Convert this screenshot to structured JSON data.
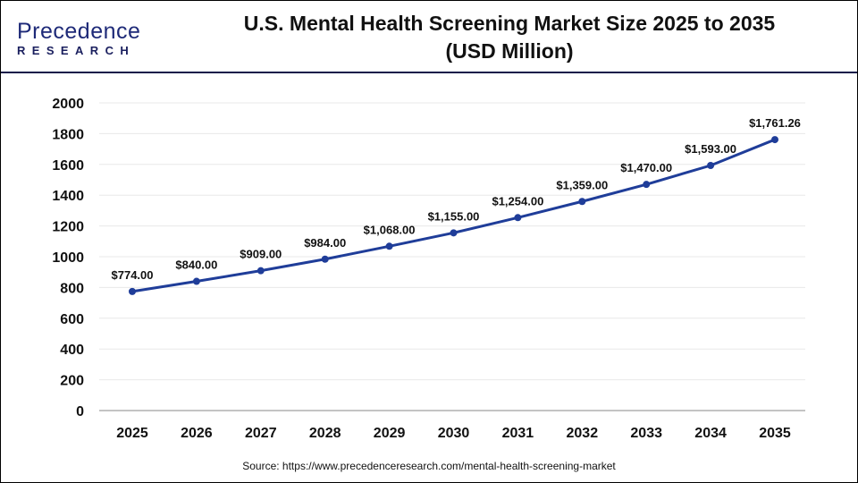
{
  "logo": {
    "line1": "Precedence",
    "line2": "RESEARCH"
  },
  "title_line1": "U.S. Mental Health Screening Market Size 2025 to 2035",
  "title_line2": "(USD Million)",
  "source": "Source: https://www.precedenceresearch.com/mental-health-screening-market",
  "chart_data": {
    "type": "line",
    "title": "U.S. Mental Health Screening Market Size 2025 to 2035 (USD Million)",
    "xlabel": "",
    "ylabel": "",
    "categories": [
      "2025",
      "2026",
      "2027",
      "2028",
      "2029",
      "2030",
      "2031",
      "2032",
      "2033",
      "2034",
      "2035"
    ],
    "values": [
      774.0,
      840.0,
      909.0,
      984.0,
      1068.0,
      1155.0,
      1254.0,
      1359.0,
      1470.0,
      1593.0,
      1761.26
    ],
    "labels": [
      "$774.00",
      "$840.00",
      "$909.00",
      "$984.00",
      "$1,068.00",
      "$1,155.00",
      "$1,254.00",
      "$1,359.00",
      "$1,470.00",
      "$1,593.00",
      "$1,761.26"
    ],
    "ylim": [
      0,
      2000
    ],
    "yticks": [
      "0",
      "200",
      "400",
      "600",
      "800",
      "1000",
      "1200",
      "1400",
      "1600",
      "1800",
      "2000"
    ],
    "grid": true,
    "legend": "none",
    "line_color": "#1f3d99"
  }
}
